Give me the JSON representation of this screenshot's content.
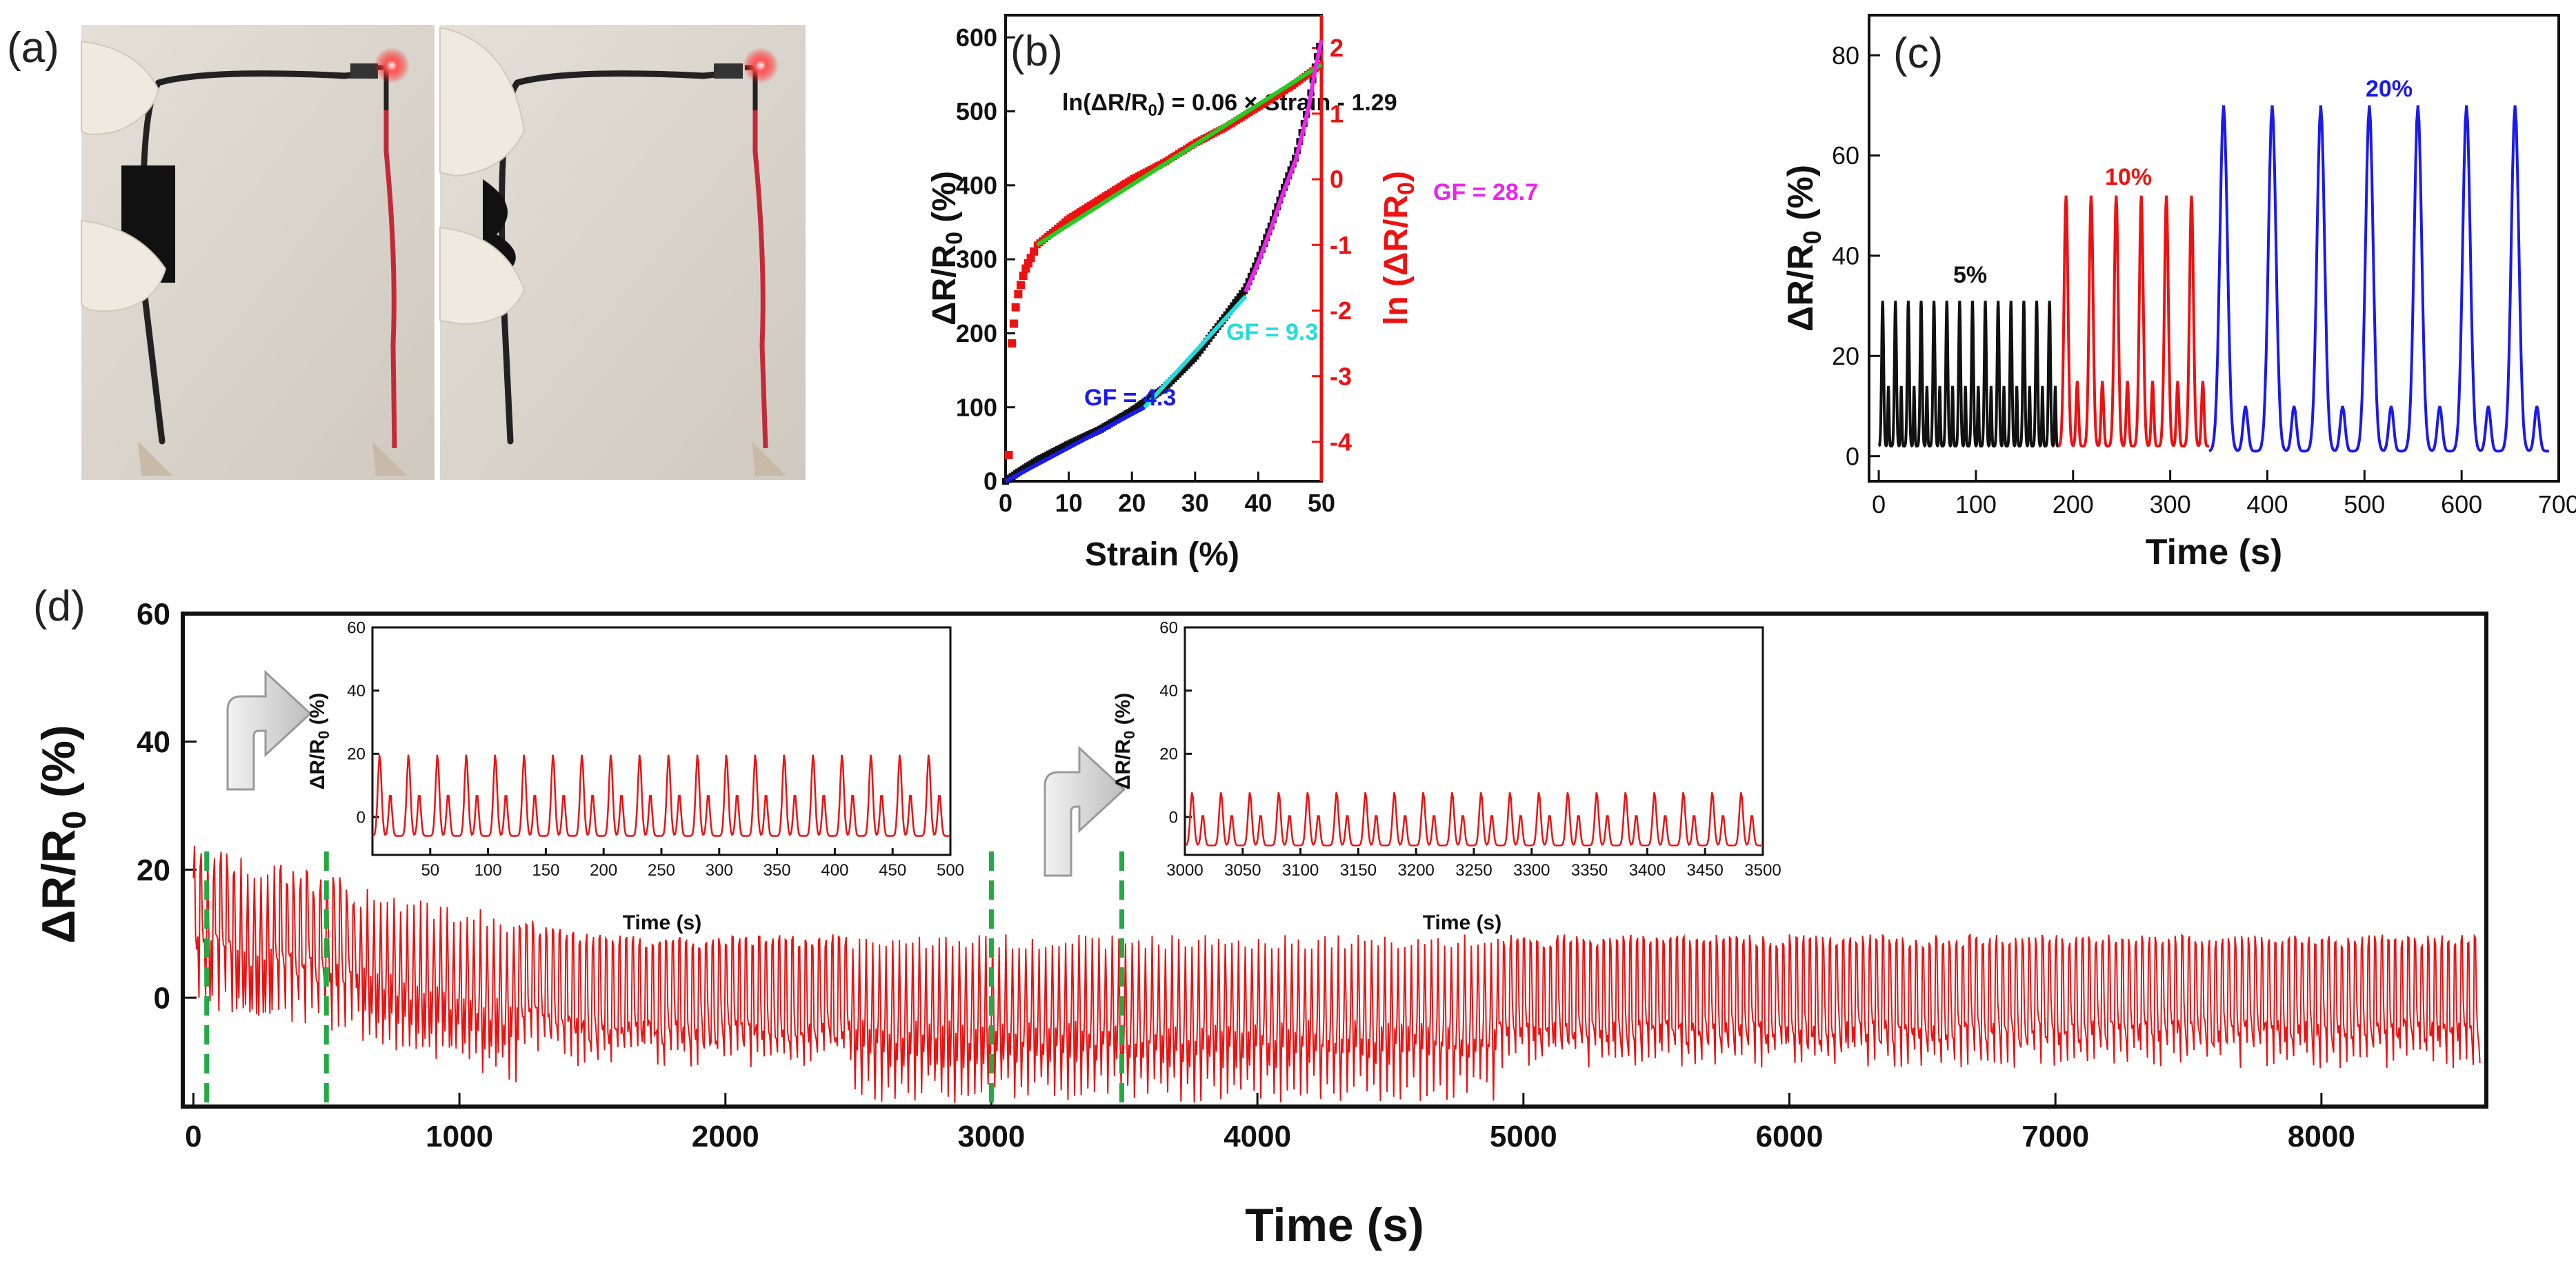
{
  "panel_labels": {
    "a": "(a)",
    "b": "(b)",
    "c": "(c)",
    "d": "(d)"
  },
  "colors": {
    "red": "#ee1111",
    "black": "#111111",
    "blue": "#1a1aee",
    "green": "#22cc22",
    "cyan": "#22dddd",
    "magenta": "#ee22ee",
    "guide": "#22aa44"
  },
  "chart_data": [
    {
      "id": "b",
      "type": "scatter",
      "xlabel": "Strain (%)",
      "ylabel": "ΔR/R0 (%)",
      "y2label": "ln (ΔR/R0)",
      "xlim": [
        0,
        50
      ],
      "ylim": [
        0,
        630
      ],
      "y2lim": [
        -4.6,
        2.5
      ],
      "xticks": [
        0,
        10,
        20,
        30,
        40,
        50
      ],
      "yticks": [
        0,
        100,
        200,
        300,
        400,
        500,
        600
      ],
      "y2ticks": [
        -4,
        -3,
        -2,
        -1,
        0,
        1,
        2
      ],
      "equation": "ln(ΔR/R0) = 0.06 × Strain - 1.29",
      "series": [
        {
          "axis": "left",
          "color": "black",
          "x": [
            0,
            2,
            5,
            10,
            15,
            20,
            25,
            30,
            35,
            38,
            40,
            42,
            44,
            46,
            48,
            49,
            50
          ],
          "y": [
            0,
            12,
            28,
            50,
            70,
            95,
            125,
            168,
            225,
            260,
            300,
            345,
            395,
            440,
            510,
            560,
            600
          ]
        },
        {
          "axis": "right",
          "color": "red",
          "x": [
            0.5,
            1,
            1.5,
            2,
            3,
            4,
            5,
            10,
            15,
            20,
            25,
            30,
            35,
            40,
            45,
            50
          ],
          "y": [
            -4.2,
            -2.5,
            -2.0,
            -1.75,
            -1.4,
            -1.2,
            -1.0,
            -0.6,
            -0.3,
            0.0,
            0.25,
            0.55,
            0.8,
            1.1,
            1.4,
            1.75
          ]
        }
      ],
      "fits": [
        {
          "axis": "right",
          "color": "green",
          "x": [
            5,
            50
          ],
          "y": [
            -1.0,
            1.75
          ]
        },
        {
          "axis": "left",
          "color": "blue",
          "label": "GF = 4.3",
          "x": [
            0,
            22
          ],
          "y": [
            0,
            100
          ]
        },
        {
          "axis": "left",
          "color": "cyan",
          "label": "GF = 9.3",
          "x": [
            22,
            38
          ],
          "y": [
            100,
            250
          ]
        },
        {
          "axis": "left",
          "color": "magenta",
          "label": "GF = 28.7",
          "x": [
            38,
            50
          ],
          "y": [
            250,
            590
          ]
        }
      ]
    },
    {
      "id": "c",
      "type": "line",
      "xlabel": "Time (s)",
      "ylabel": "ΔR/R0 (%)",
      "xlim": [
        -10,
        700
      ],
      "ylim": [
        -5,
        88
      ],
      "xticks": [
        0,
        100,
        200,
        300,
        400,
        500,
        600,
        700
      ],
      "yticks": [
        0,
        20,
        40,
        60,
        80
      ],
      "segments": [
        {
          "label": "5%",
          "color": "black",
          "t_start": 0,
          "t_end": 185,
          "cycles": 14,
          "peak": 31,
          "sub": 14,
          "base": 2
        },
        {
          "label": "10%",
          "color": "red",
          "t_start": 185,
          "t_end": 340,
          "cycles": 6,
          "peak": 52,
          "sub": 15,
          "base": 2
        },
        {
          "label": "20%",
          "color": "blue",
          "t_start": 340,
          "t_end": 690,
          "cycles": 7,
          "peak": 70,
          "sub": 10,
          "base": 1
        }
      ]
    },
    {
      "id": "d",
      "type": "line",
      "xlabel": "Time (s)",
      "ylabel": "ΔR/R0 (%)",
      "xlim": [
        -40,
        8620
      ],
      "ylim": [
        -17,
        60
      ],
      "xticks": [
        0,
        1000,
        2000,
        3000,
        4000,
        5000,
        6000,
        7000,
        8000
      ],
      "yticks": [
        0,
        20,
        40,
        60
      ],
      "guide_lines": [
        50,
        500,
        3000,
        3490
      ],
      "series": [
        {
          "color": "red",
          "t_start": 0,
          "t_end": 8600,
          "period": 25,
          "peak_start": 22,
          "peak_end": 9,
          "trough_start": 0,
          "trough_end": -15
        }
      ]
    },
    {
      "id": "d-inset-1",
      "type": "line",
      "xlabel": "Time (s)",
      "ylabel": "ΔR/R0 (%)",
      "xlim": [
        0,
        500
      ],
      "ylim": [
        -12,
        60
      ],
      "xticks": [
        50,
        100,
        150,
        200,
        250,
        300,
        350,
        400,
        450,
        500
      ],
      "yticks": [
        0,
        20,
        40,
        60
      ],
      "series": [
        {
          "color": "red",
          "t_start": 0,
          "t_end": 500,
          "period": 25,
          "peak": 20,
          "sub": 9,
          "trough": -6
        }
      ]
    },
    {
      "id": "d-inset-2",
      "type": "line",
      "xlabel": "Time (s)",
      "ylabel": "ΔR/R0 (%)",
      "xlim": [
        3000,
        3500
      ],
      "ylim": [
        -12,
        60
      ],
      "xticks": [
        3000,
        3050,
        3100,
        3150,
        3200,
        3250,
        3300,
        3350,
        3400,
        3450,
        3500
      ],
      "yticks": [
        0,
        20,
        40,
        60
      ],
      "series": [
        {
          "color": "red",
          "t_start": 3000,
          "t_end": 3500,
          "period": 25,
          "peak": 8,
          "sub": 2,
          "trough": -9
        }
      ]
    }
  ]
}
